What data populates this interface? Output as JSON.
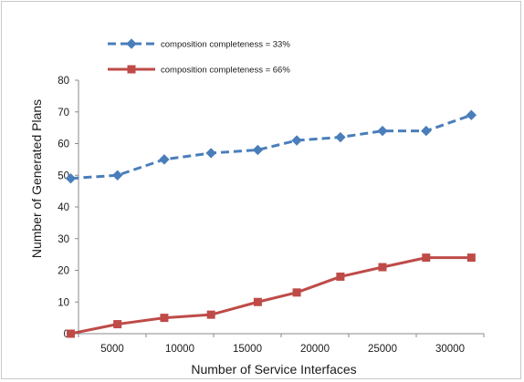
{
  "chart_data": {
    "type": "line",
    "title": "",
    "xlabel": "Number of Service Interfaces",
    "ylabel": "Number of Generated Plans",
    "x_ticks": [
      "5000",
      "10000",
      "15000",
      "20000",
      "25000",
      "30000"
    ],
    "xlim": [
      4000,
      30000
    ],
    "ylim": [
      0,
      80
    ],
    "y_ticks": [
      0,
      10,
      20,
      30,
      40,
      50,
      60,
      70,
      80
    ],
    "grid": false,
    "legend_position": "top-left",
    "series": [
      {
        "name": "composition completeness = 33%",
        "color": "#4a7ebb",
        "line_style": "dashed",
        "marker": "diamond",
        "x": [
          3500,
          6500,
          9500,
          12500,
          15500,
          18000,
          20800,
          23500,
          26300,
          29200
        ],
        "y": [
          49,
          50,
          55,
          57,
          58,
          61,
          62,
          64,
          64,
          69
        ]
      },
      {
        "name": "composition completeness = 66%",
        "color": "#be4b48",
        "line_style": "solid",
        "marker": "square",
        "x": [
          3500,
          6500,
          9500,
          12500,
          15500,
          18000,
          20800,
          23500,
          26300,
          29200
        ],
        "y": [
          0,
          3,
          5,
          6,
          10,
          13,
          18,
          21,
          24,
          24
        ]
      }
    ]
  }
}
